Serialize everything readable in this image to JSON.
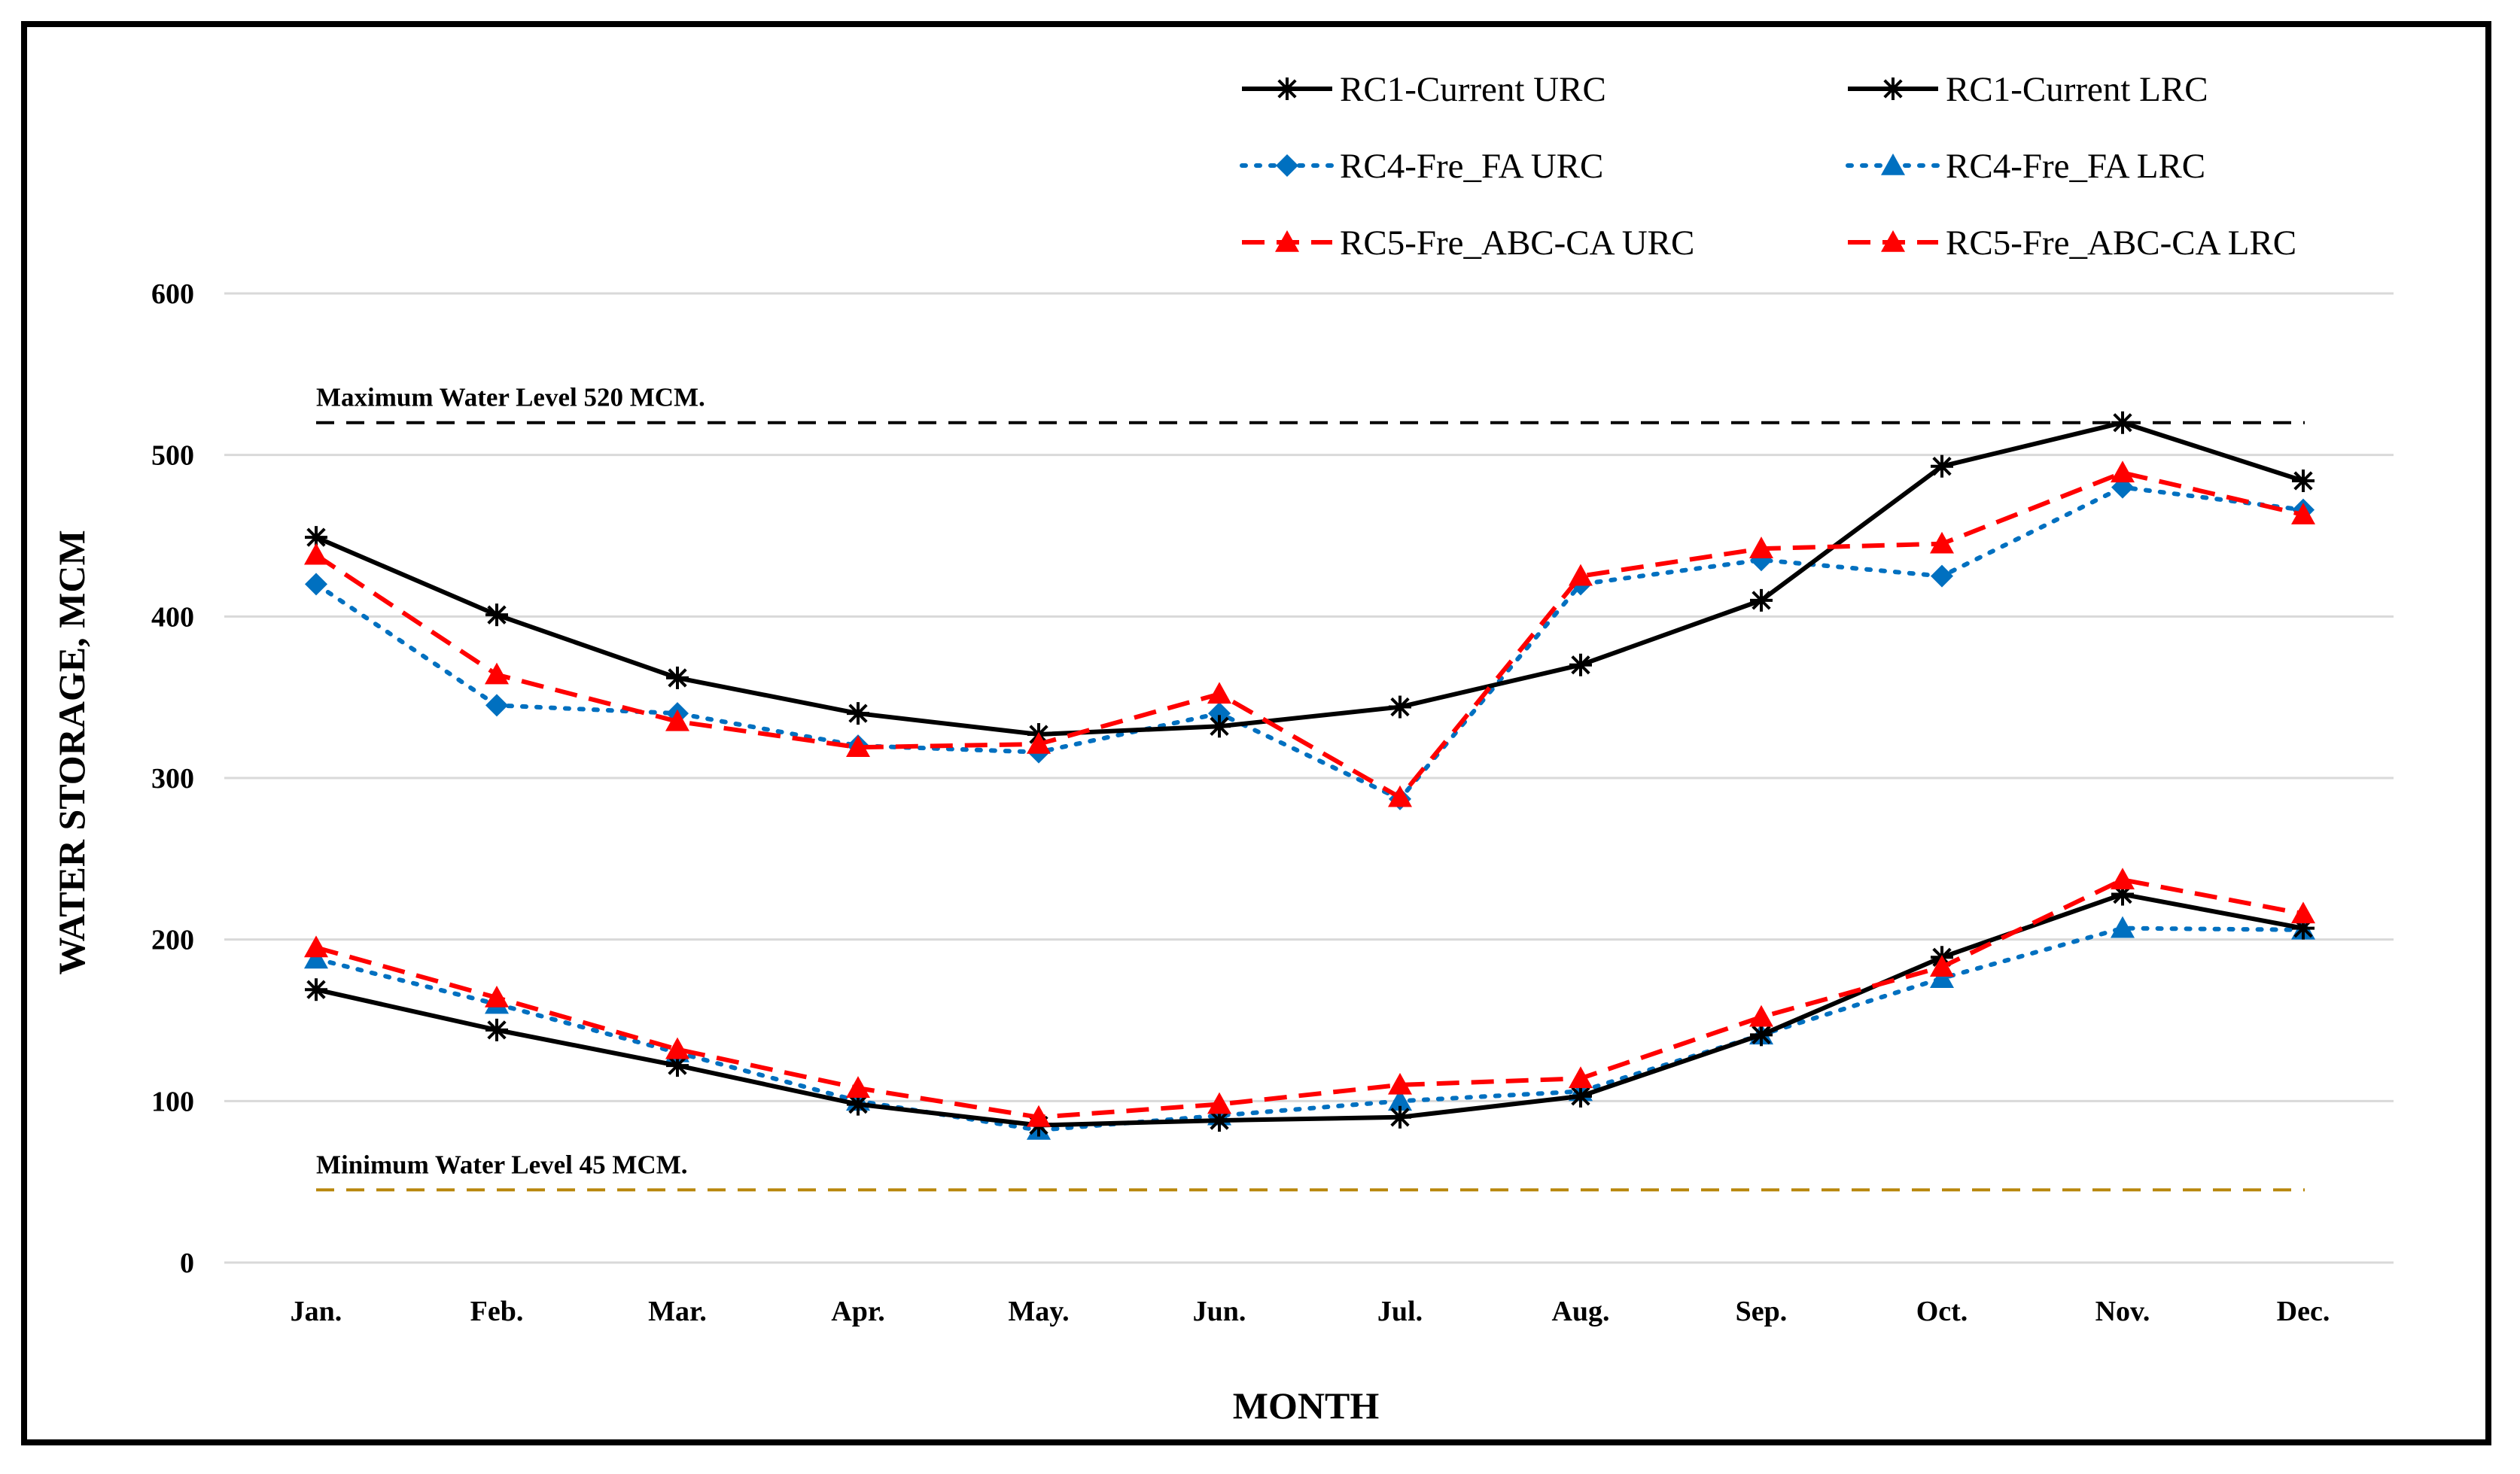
{
  "chart_data": {
    "type": "line",
    "xlabel": "MONTH",
    "ylabel": "WATER  STORAGE, MCM",
    "ylim": [
      0,
      600
    ],
    "yticks": [
      0,
      100,
      200,
      300,
      400,
      500,
      600
    ],
    "grid": true,
    "legend_position": "top-right",
    "categories": [
      "Jan.",
      "Feb.",
      "Mar.",
      "Apr.",
      "May.",
      "Jun.",
      "Jul.",
      "Aug.",
      "Sep.",
      "Oct.",
      "Nov.",
      "Dec."
    ],
    "series": [
      {
        "name": "RC1-Current URC",
        "color": "#000000",
        "dash": "solid",
        "marker": "asterisk",
        "values": [
          449,
          401,
          362,
          340,
          327,
          332,
          344,
          370,
          410,
          493,
          520,
          484
        ]
      },
      {
        "name": "RC1-Current LRC",
        "color": "#000000",
        "dash": "solid",
        "marker": "asterisk",
        "values": [
          169,
          144,
          122,
          98,
          85,
          88,
          90,
          103,
          141,
          189,
          228,
          207
        ]
      },
      {
        "name": "RC4-Fre_FA URC",
        "color": "#0070C0",
        "dash": "dotted",
        "marker": "diamond",
        "values": [
          420,
          345,
          340,
          320,
          316,
          340,
          287,
          420,
          435,
          425,
          480,
          466
        ]
      },
      {
        "name": "RC4-Fre_FA LRC",
        "color": "#0070C0",
        "dash": "dotted",
        "marker": "triangle",
        "values": [
          188,
          160,
          130,
          100,
          82,
          91,
          100,
          106,
          141,
          176,
          207,
          206
        ]
      },
      {
        "name": "RC5-Fre_ABC-CA URC",
        "color": "#FF0000",
        "dash": "dashed",
        "marker": "triangle",
        "values": [
          438,
          364,
          335,
          319,
          321,
          352,
          288,
          425,
          442,
          445,
          489,
          463
        ]
      },
      {
        "name": "RC5-Fre_ABC-CA LRC",
        "color": "#FF0000",
        "dash": "dashed",
        "marker": "triangle",
        "values": [
          195,
          164,
          132,
          108,
          90,
          98,
          110,
          114,
          152,
          183,
          237,
          216
        ]
      }
    ],
    "reference_lines": [
      {
        "label": "Maximum Water Level  520 MCM.",
        "value": 520,
        "color": "#000000"
      },
      {
        "label": "Minimum Water Level  45 MCM.",
        "value": 45,
        "color": "#B8860B"
      }
    ]
  }
}
